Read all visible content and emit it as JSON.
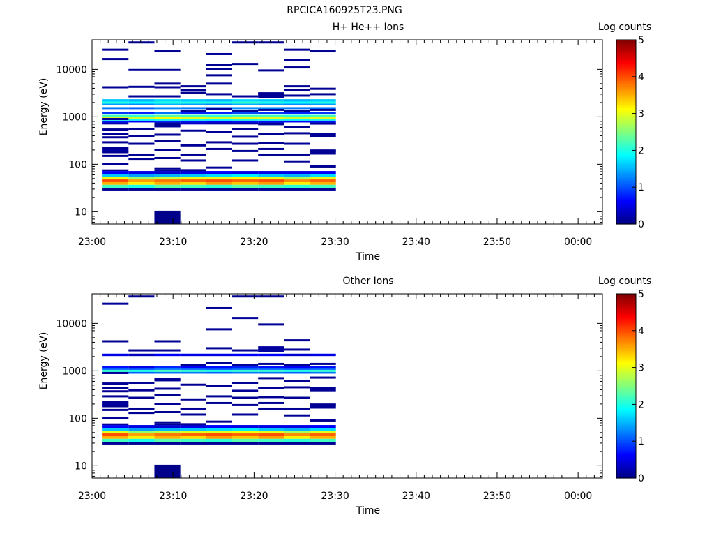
{
  "figure_title": "RPCICA160925T23.PNG",
  "chart_data": [
    {
      "type": "heatmap",
      "title": "H+ He++ Ions",
      "xlabel": "Time",
      "ylabel": "Energy (eV)",
      "colorbar_label": "Log counts",
      "colorbar_ticks": [
        "0",
        "1",
        "2",
        "3",
        "4",
        "5"
      ],
      "colorbar_range": [
        0,
        5
      ],
      "x_tick_labels": [
        "23:00",
        "23:10",
        "23:20",
        "23:30",
        "23:40",
        "23:50",
        "00:00"
      ],
      "xlim_minutes": [
        0,
        63
      ],
      "y_tick_labels": [
        "10",
        "100",
        "1000",
        "10000"
      ],
      "y_scale": "log",
      "ylim": [
        5.5,
        42000
      ],
      "time_bins_start_minutes": [
        1.3,
        4.5,
        7.7,
        10.9,
        14.1,
        17.3,
        20.5,
        23.7,
        26.9
      ],
      "bands": [
        {
          "e_lo": 28,
          "e_hi": 32,
          "v": [
            0.1,
            0.1,
            0.1,
            0.1,
            0.1,
            0.1,
            0.1,
            0.1,
            0.1
          ]
        },
        {
          "e_lo": 32,
          "e_hi": 37,
          "v": [
            2.2,
            2.0,
            2.3,
            2.2,
            2.1,
            2.3,
            2.2,
            2.1,
            2.2
          ]
        },
        {
          "e_lo": 37,
          "e_hi": 42,
          "v": [
            3.5,
            3.2,
            3.5,
            3.3,
            3.6,
            3.4,
            3.6,
            3.2,
            3.5
          ]
        },
        {
          "e_lo": 42,
          "e_hi": 48,
          "v": [
            4.0,
            3.6,
            3.8,
            3.9,
            4.0,
            3.9,
            4.0,
            3.7,
            3.9
          ]
        },
        {
          "e_lo": 48,
          "e_hi": 55,
          "v": [
            3.0,
            2.6,
            2.8,
            3.0,
            3.0,
            3.1,
            3.0,
            2.7,
            3.0
          ]
        },
        {
          "e_lo": 55,
          "e_hi": 63,
          "v": [
            1.6,
            1.4,
            1.5,
            1.6,
            1.7,
            1.8,
            1.6,
            1.5,
            1.7
          ]
        },
        {
          "e_lo": 63,
          "e_hi": 72,
          "v": [
            0.6,
            0.5,
            0.4,
            0.5,
            0.6,
            0.5,
            0.5,
            0.5,
            0.6
          ]
        },
        {
          "e_lo": 72,
          "e_hi": 78,
          "v": [
            0.1,
            null,
            0.1,
            0.1,
            null,
            null,
            null,
            null,
            null
          ]
        },
        {
          "e_lo": 1450,
          "e_hi": 1550,
          "v": [
            1.2,
            1.1,
            1.3,
            1.2,
            1.2,
            1.3,
            1.3,
            1.2,
            1.2
          ]
        },
        {
          "e_lo": 1750,
          "e_hi": 1900,
          "v": [
            1.4,
            1.3,
            1.5,
            1.4,
            1.3,
            1.5,
            1.4,
            1.3,
            1.4
          ]
        },
        {
          "e_lo": 1900,
          "e_hi": 2100,
          "v": [
            2.0,
            1.9,
            2.0,
            2.0,
            2.0,
            2.1,
            2.0,
            1.9,
            2.0
          ]
        },
        {
          "e_lo": 2100,
          "e_hi": 2350,
          "v": [
            1.6,
            1.5,
            1.7,
            1.6,
            1.5,
            1.7,
            1.6,
            1.5,
            1.6
          ]
        },
        {
          "e_lo": 1160,
          "e_hi": 1260,
          "v": [
            0.9,
            0.8,
            1.2,
            0.8,
            0.8,
            1.0,
            0.9,
            0.8,
            0.9
          ]
        },
        {
          "e_lo": 1000,
          "e_hi": 1100,
          "v": [
            2.2,
            2.1,
            2.3,
            2.2,
            2.1,
            2.2,
            2.2,
            2.1,
            2.2
          ]
        },
        {
          "e_lo": 900,
          "e_hi": 1000,
          "v": [
            3.0,
            2.9,
            3.1,
            3.0,
            2.9,
            3.0,
            3.0,
            2.9,
            3.0
          ]
        },
        {
          "e_lo": 830,
          "e_hi": 900,
          "v": [
            2.0,
            1.9,
            2.0,
            2.0,
            1.9,
            2.0,
            2.0,
            1.9,
            2.0
          ]
        },
        {
          "e_lo": 760,
          "e_hi": 830,
          "v": [
            0.7,
            0.6,
            0.8,
            0.7,
            0.6,
            0.7,
            0.7,
            0.6,
            0.7
          ]
        },
        {
          "e_lo": 690,
          "e_hi": 760,
          "v": [
            0.2,
            null,
            0.1,
            0.3,
            0.2,
            0.2,
            0.2,
            null,
            0.3
          ]
        }
      ],
      "marks": [
        {
          "t0": 1.3,
          "t1": 4.5,
          "e": [
            26000,
            16500,
            4200,
            900,
            540,
            430,
            370,
            290,
            220,
            180,
            150,
            100
          ]
        },
        {
          "t0": 4.5,
          "t1": 7.7,
          "e": [
            37000,
            9700,
            4300,
            2700,
            560,
            390,
            270,
            160,
            130
          ]
        },
        {
          "t0": 7.7,
          "t1": 10.9,
          "e": [
            24000,
            9700,
            5000,
            4200,
            2700,
            650,
            420,
            310,
            200,
            135,
            82
          ]
        },
        {
          "t0": 10.9,
          "t1": 14.1,
          "e": [
            4400,
            3700,
            3200,
            1350,
            510,
            250,
            160,
            120,
            75
          ]
        },
        {
          "t0": 14.1,
          "t1": 17.3,
          "e": [
            21000,
            12500,
            10200,
            7500,
            5000,
            3000,
            1450,
            480,
            290,
            210,
            85
          ]
        },
        {
          "t0": 17.3,
          "t1": 20.5,
          "e": [
            37000,
            13000,
            2700,
            1350,
            560,
            380,
            270,
            190,
            120
          ]
        },
        {
          "t0": 20.5,
          "t1": 23.7,
          "e": [
            37000,
            9500,
            3100,
            1400,
            700,
            430,
            280,
            210,
            160
          ]
        },
        {
          "t0": 23.7,
          "t1": 26.9,
          "e": [
            26000,
            15500,
            11000,
            4400,
            3700,
            2800,
            1350,
            610,
            450,
            270,
            160,
            115
          ]
        },
        {
          "t0": 26.9,
          "t1": 30.1,
          "e": [
            24000,
            3900,
            3000,
            1400,
            720,
            430,
            390,
            190,
            90
          ]
        }
      ],
      "blocks": [
        {
          "t0": 7.7,
          "t1": 10.9,
          "e_lo": 5.6,
          "e_hi": 10.5,
          "v": 0.05
        },
        {
          "t0": 7.7,
          "t1": 10.9,
          "e_lo": 600,
          "e_hi": 720,
          "v": 0.15
        },
        {
          "t0": 1.3,
          "t1": 4.5,
          "e_lo": 180,
          "e_hi": 215,
          "v": 0.15
        },
        {
          "t0": 26.9,
          "t1": 30.1,
          "e_lo": 160,
          "e_hi": 205,
          "v": 0.1
        },
        {
          "t0": 20.5,
          "t1": 23.7,
          "e_lo": 2500,
          "e_hi": 3300,
          "v": 0.1
        }
      ]
    },
    {
      "type": "heatmap",
      "title": "Other Ions",
      "xlabel": "Time",
      "ylabel": "Energy (eV)",
      "colorbar_label": "Log counts",
      "colorbar_ticks": [
        "0",
        "1",
        "2",
        "3",
        "4",
        "5"
      ],
      "colorbar_range": [
        0,
        5
      ],
      "x_tick_labels": [
        "23:00",
        "23:10",
        "23:20",
        "23:30",
        "23:40",
        "23:50",
        "00:00"
      ],
      "xlim_minutes": [
        0,
        63
      ],
      "y_tick_labels": [
        "10",
        "100",
        "1000",
        "10000"
      ],
      "y_scale": "log",
      "ylim": [
        5.5,
        42000
      ],
      "time_bins_start_minutes": [
        1.3,
        4.5,
        7.7,
        10.9,
        14.1,
        17.3,
        20.5,
        23.7,
        26.9
      ],
      "bands": [
        {
          "e_lo": 28,
          "e_hi": 32,
          "v": [
            0.1,
            0.1,
            0.1,
            0.1,
            0.1,
            0.1,
            0.1,
            0.1,
            0.1
          ]
        },
        {
          "e_lo": 32,
          "e_hi": 37,
          "v": [
            2.2,
            2.0,
            2.3,
            2.2,
            2.1,
            2.3,
            2.2,
            2.1,
            2.2
          ]
        },
        {
          "e_lo": 37,
          "e_hi": 42,
          "v": [
            3.5,
            3.2,
            3.5,
            3.3,
            3.6,
            3.4,
            3.6,
            3.2,
            3.5
          ]
        },
        {
          "e_lo": 42,
          "e_hi": 48,
          "v": [
            4.0,
            3.6,
            3.8,
            3.9,
            4.0,
            3.9,
            4.0,
            3.7,
            3.9
          ]
        },
        {
          "e_lo": 48,
          "e_hi": 55,
          "v": [
            3.0,
            2.6,
            2.8,
            3.0,
            3.0,
            3.1,
            3.0,
            2.7,
            3.0
          ]
        },
        {
          "e_lo": 55,
          "e_hi": 63,
          "v": [
            1.6,
            1.4,
            1.5,
            1.6,
            1.7,
            1.8,
            1.6,
            1.5,
            1.7
          ]
        },
        {
          "e_lo": 63,
          "e_hi": 72,
          "v": [
            0.6,
            0.5,
            0.4,
            0.5,
            0.6,
            0.5,
            0.5,
            0.5,
            0.6
          ]
        },
        {
          "e_lo": 72,
          "e_hi": 78,
          "v": [
            0.1,
            null,
            0.1,
            0.1,
            null,
            null,
            null,
            null,
            null
          ]
        },
        {
          "e_lo": 2050,
          "e_hi": 2300,
          "v": [
            0.5,
            0.3,
            0.6,
            0.5,
            0.5,
            0.6,
            0.6,
            0.4,
            0.5
          ]
        },
        {
          "e_lo": 1150,
          "e_hi": 1250,
          "v": [
            0.7,
            0.5,
            0.8,
            0.6,
            0.7,
            0.8,
            0.7,
            0.6,
            0.7
          ]
        },
        {
          "e_lo": 1050,
          "e_hi": 1150,
          "v": [
            1.1,
            1.0,
            1.2,
            1.1,
            1.0,
            1.1,
            1.1,
            1.0,
            1.1
          ]
        },
        {
          "e_lo": 950,
          "e_hi": 1050,
          "v": [
            2.1,
            2.0,
            2.2,
            2.1,
            2.0,
            2.1,
            2.1,
            2.0,
            2.1
          ]
        },
        {
          "e_lo": 870,
          "e_hi": 950,
          "v": [
            1.2,
            1.1,
            1.2,
            1.2,
            1.1,
            1.2,
            1.2,
            1.1,
            1.2
          ]
        }
      ],
      "marks": [
        {
          "t0": 1.3,
          "t1": 4.5,
          "e": [
            26000,
            4200,
            900,
            540,
            430,
            370,
            290,
            220,
            180,
            150,
            100
          ]
        },
        {
          "t0": 4.5,
          "t1": 7.7,
          "e": [
            37000,
            2700,
            560,
            390,
            270,
            160,
            130
          ]
        },
        {
          "t0": 7.7,
          "t1": 10.9,
          "e": [
            4200,
            2700,
            650,
            420,
            310,
            200,
            135,
            82
          ]
        },
        {
          "t0": 10.9,
          "t1": 14.1,
          "e": [
            1350,
            510,
            250,
            160,
            120,
            75
          ]
        },
        {
          "t0": 14.1,
          "t1": 17.3,
          "e": [
            21000,
            7500,
            3000,
            1450,
            480,
            290,
            210,
            85
          ]
        },
        {
          "t0": 17.3,
          "t1": 20.5,
          "e": [
            37000,
            13000,
            2700,
            1350,
            560,
            380,
            270,
            190,
            120
          ]
        },
        {
          "t0": 20.5,
          "t1": 23.7,
          "e": [
            37000,
            9500,
            1400,
            700,
            430,
            280,
            210,
            160
          ]
        },
        {
          "t0": 23.7,
          "t1": 26.9,
          "e": [
            4400,
            2800,
            1350,
            610,
            450,
            270,
            160,
            115
          ]
        },
        {
          "t0": 26.9,
          "t1": 30.1,
          "e": [
            1400,
            720,
            430,
            390,
            190,
            90
          ]
        }
      ],
      "blocks": [
        {
          "t0": 7.7,
          "t1": 10.9,
          "e_lo": 5.6,
          "e_hi": 10.5,
          "v": 0.05
        },
        {
          "t0": 7.7,
          "t1": 10.9,
          "e_lo": 600,
          "e_hi": 720,
          "v": 0.15
        },
        {
          "t0": 1.3,
          "t1": 4.5,
          "e_lo": 180,
          "e_hi": 215,
          "v": 0.15
        },
        {
          "t0": 26.9,
          "t1": 30.1,
          "e_lo": 160,
          "e_hi": 205,
          "v": 0.1
        },
        {
          "t0": 20.5,
          "t1": 23.7,
          "e_lo": 2500,
          "e_hi": 3300,
          "v": 0.15
        }
      ]
    }
  ]
}
